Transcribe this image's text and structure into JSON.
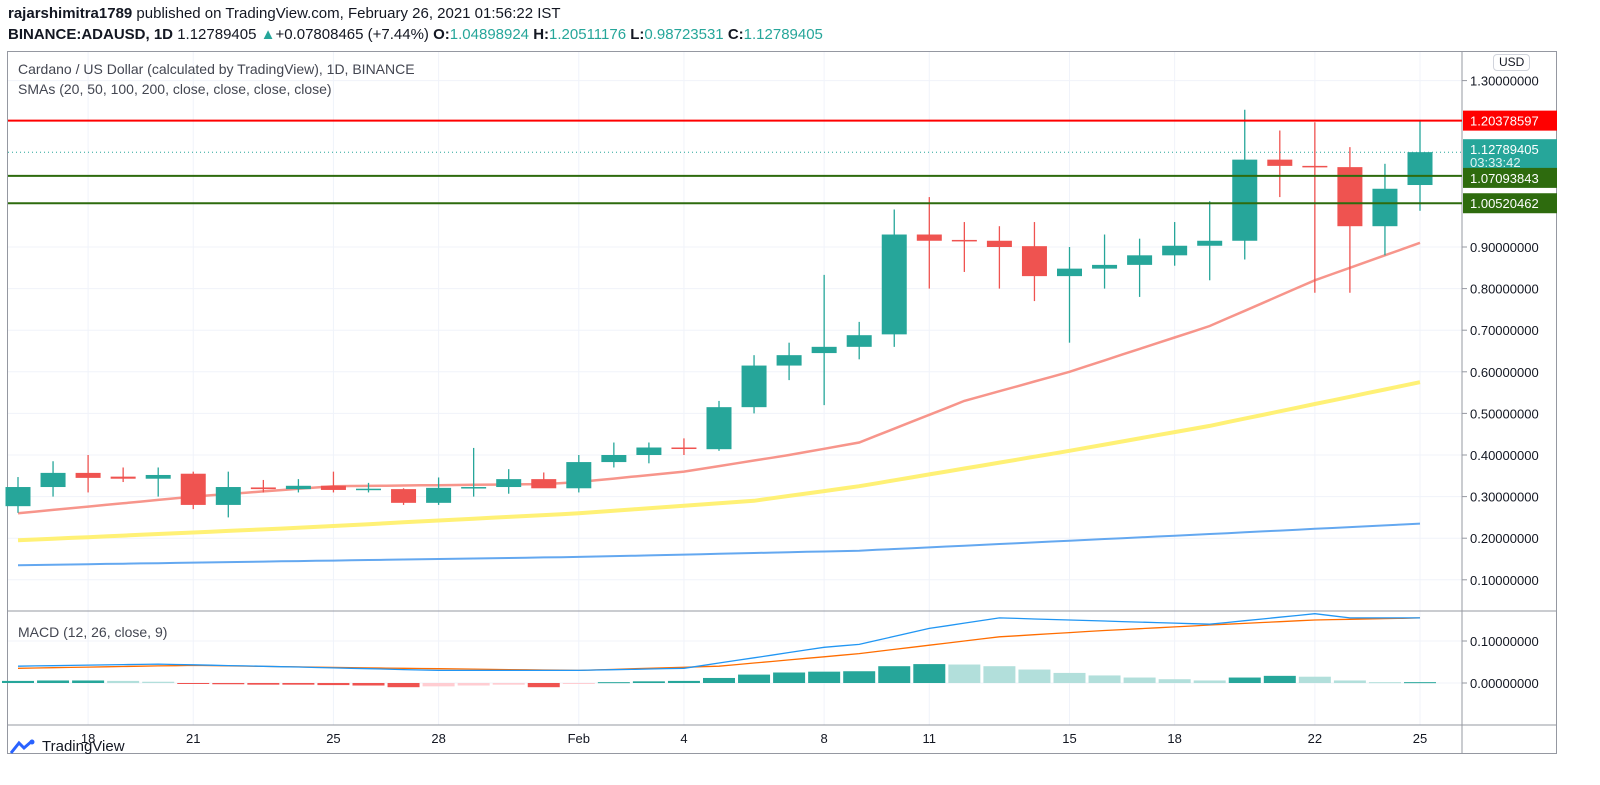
{
  "header": {
    "author": "rajarshimitra1789",
    "published_text": " published on TradingView.com, February 26, 2021 01:56:22 IST",
    "symbol": "BINANCE:ADAUSD, 1D",
    "last": "1.12789405",
    "arrow": "▲",
    "change": "+0.07808465 (+7.44%)",
    "o_label": "O:",
    "o": "1.04898924",
    "h_label": "H:",
    "h": "1.20511176",
    "l_label": "L:",
    "l": "0.98723531",
    "c_label": "C:",
    "c": "1.12789405"
  },
  "legend": {
    "title": "Cardano / US Dollar (calculated by TradingView), 1D, BINANCE",
    "smas": "SMAs (20, 50, 100, 200, close, close, close, close)",
    "macd": "MACD (12, 26, close, 9)"
  },
  "currency": "USD",
  "footer": {
    "brand": "TradingView"
  },
  "colors": {
    "up": "#26a69a",
    "down": "#ef5350",
    "sma20": "#f7958b",
    "sma50": "#fff176",
    "sma100": "#64a8f0",
    "macd": "#2196f3",
    "signal": "#ff6d00",
    "resistance": "#ff0000",
    "support": "#2e6b0e"
  },
  "chart_data": [
    {
      "type": "candlestick",
      "title": "Cardano / US Dollar, 1D, BINANCE",
      "ylim": [
        0.02,
        1.34
      ],
      "y_ticks": [
        "0.10000000",
        "0.20000000",
        "0.30000000",
        "0.40000000",
        "0.50000000",
        "0.60000000",
        "0.70000000",
        "0.80000000",
        "0.90000000",
        "1.30000000"
      ],
      "x_ticks": [
        {
          "day": 2,
          "label": "18"
        },
        {
          "day": 5,
          "label": "21"
        },
        {
          "day": 9,
          "label": "25"
        },
        {
          "day": 12,
          "label": "28"
        },
        {
          "day": 16,
          "label": "Feb"
        },
        {
          "day": 19,
          "label": "4"
        },
        {
          "day": 23,
          "label": "8"
        },
        {
          "day": 26,
          "label": "11"
        },
        {
          "day": 30,
          "label": "15"
        },
        {
          "day": 33,
          "label": "18"
        },
        {
          "day": 37,
          "label": "22"
        },
        {
          "day": 40,
          "label": "25"
        }
      ],
      "dates_range": [
        "2021-01-16",
        "2021-02-25"
      ],
      "ohlc": [
        [
          0.277,
          0.347,
          0.261,
          0.323
        ],
        [
          0.323,
          0.385,
          0.3,
          0.357
        ],
        [
          0.357,
          0.4,
          0.31,
          0.345
        ],
        [
          0.348,
          0.37,
          0.335,
          0.343
        ],
        [
          0.343,
          0.37,
          0.3,
          0.352
        ],
        [
          0.355,
          0.36,
          0.27,
          0.28
        ],
        [
          0.28,
          0.36,
          0.25,
          0.323
        ],
        [
          0.322,
          0.34,
          0.31,
          0.318
        ],
        [
          0.318,
          0.342,
          0.31,
          0.326
        ],
        [
          0.326,
          0.36,
          0.31,
          0.316
        ],
        [
          0.316,
          0.333,
          0.31,
          0.319
        ],
        [
          0.318,
          0.32,
          0.28,
          0.285
        ],
        [
          0.285,
          0.346,
          0.28,
          0.321
        ],
        [
          0.321,
          0.417,
          0.3,
          0.323
        ],
        [
          0.323,
          0.366,
          0.307,
          0.342
        ],
        [
          0.342,
          0.358,
          0.33,
          0.32
        ],
        [
          0.32,
          0.4,
          0.31,
          0.383
        ],
        [
          0.383,
          0.43,
          0.37,
          0.4
        ],
        [
          0.4,
          0.43,
          0.38,
          0.418
        ],
        [
          0.418,
          0.44,
          0.4,
          0.415
        ],
        [
          0.414,
          0.53,
          0.41,
          0.515
        ],
        [
          0.515,
          0.64,
          0.5,
          0.615
        ],
        [
          0.615,
          0.67,
          0.58,
          0.64
        ],
        [
          0.645,
          0.833,
          0.52,
          0.66
        ],
        [
          0.66,
          0.72,
          0.63,
          0.688
        ],
        [
          0.69,
          0.99,
          0.66,
          0.93
        ],
        [
          0.93,
          1.02,
          0.8,
          0.915
        ],
        [
          0.917,
          0.96,
          0.84,
          0.914
        ],
        [
          0.915,
          0.95,
          0.8,
          0.9
        ],
        [
          0.902,
          0.96,
          0.77,
          0.83
        ],
        [
          0.83,
          0.9,
          0.67,
          0.848
        ],
        [
          0.848,
          0.93,
          0.8,
          0.857
        ],
        [
          0.857,
          0.92,
          0.78,
          0.88
        ],
        [
          0.88,
          0.96,
          0.855,
          0.903
        ],
        [
          0.903,
          1.01,
          0.82,
          0.915
        ],
        [
          0.915,
          1.23,
          0.87,
          1.11
        ],
        [
          1.11,
          1.18,
          1.02,
          1.095
        ],
        [
          1.095,
          1.2,
          0.79,
          1.092
        ],
        [
          1.092,
          1.14,
          0.79,
          0.95
        ],
        [
          0.95,
          1.1,
          0.88,
          1.04
        ],
        [
          1.049,
          1.205,
          0.987,
          1.128
        ]
      ],
      "sma": [
        {
          "name": "SMA 20",
          "points": [
            [
              0,
              0.26
            ],
            [
              5,
              0.3
            ],
            [
              9,
              0.325
            ],
            [
              15,
              0.33
            ],
            [
              16,
              0.335
            ],
            [
              19,
              0.36
            ],
            [
              22,
              0.4
            ],
            [
              24,
              0.43
            ],
            [
              27,
              0.53
            ],
            [
              30,
              0.6
            ],
            [
              34,
              0.71
            ],
            [
              37,
              0.82
            ],
            [
              40,
              0.91
            ]
          ]
        },
        {
          "name": "SMA 50",
          "points": [
            [
              0,
              0.195
            ],
            [
              8,
              0.225
            ],
            [
              16,
              0.26
            ],
            [
              21,
              0.29
            ],
            [
              24,
              0.325
            ],
            [
              30,
              0.41
            ],
            [
              34,
              0.47
            ],
            [
              40,
              0.575
            ]
          ]
        },
        {
          "name": "SMA 100",
          "points": [
            [
              0,
              0.135
            ],
            [
              16,
              0.155
            ],
            [
              24,
              0.17
            ],
            [
              34,
              0.21
            ],
            [
              40,
              0.235
            ]
          ]
        }
      ],
      "price_lines": [
        {
          "label": "1.20378597",
          "value": 1.20378597,
          "kind": "resistance"
        },
        {
          "label": "1.07093843",
          "value": 1.07093843,
          "kind": "support"
        },
        {
          "label": "1.00520462",
          "value": 1.00520462,
          "kind": "support"
        }
      ],
      "last_price": {
        "label": "1.12789405",
        "value": 1.12789405,
        "countdown": "03:33:42"
      }
    },
    {
      "type": "bar+line",
      "title": "MACD (12, 26, close, 9)",
      "ylim": [
        -0.02,
        0.17
      ],
      "y_ticks": [
        "0.00000000",
        "0.10000000"
      ],
      "macd": [
        [
          0,
          0.04
        ],
        [
          4,
          0.045
        ],
        [
          8,
          0.038
        ],
        [
          12,
          0.03
        ],
        [
          16,
          0.03
        ],
        [
          19,
          0.035
        ],
        [
          23,
          0.085
        ],
        [
          24,
          0.092
        ],
        [
          26,
          0.13
        ],
        [
          28,
          0.155
        ],
        [
          34,
          0.14
        ],
        [
          37,
          0.165
        ],
        [
          38,
          0.155
        ],
        [
          40,
          0.155
        ]
      ],
      "signal": [
        [
          0,
          0.035
        ],
        [
          5,
          0.042
        ],
        [
          10,
          0.036
        ],
        [
          16,
          0.03
        ],
        [
          20,
          0.04
        ],
        [
          24,
          0.07
        ],
        [
          28,
          0.11
        ],
        [
          31,
          0.125
        ],
        [
          34,
          0.138
        ],
        [
          37,
          0.15
        ],
        [
          40,
          0.155
        ]
      ],
      "histogram": [
        0.005,
        0.006,
        0.006,
        0.005,
        0.003,
        -0.002,
        -0.003,
        -0.004,
        -0.004,
        -0.005,
        -0.006,
        -0.01,
        -0.008,
        -0.006,
        -0.004,
        -0.01,
        -0.001,
        0.002,
        0.004,
        0.005,
        0.012,
        0.02,
        0.025,
        0.027,
        0.028,
        0.04,
        0.045,
        0.044,
        0.04,
        0.032,
        0.024,
        0.018,
        0.013,
        0.009,
        0.006,
        0.013,
        0.017,
        0.015,
        0.006,
        0.002,
        0.002
      ]
    }
  ]
}
